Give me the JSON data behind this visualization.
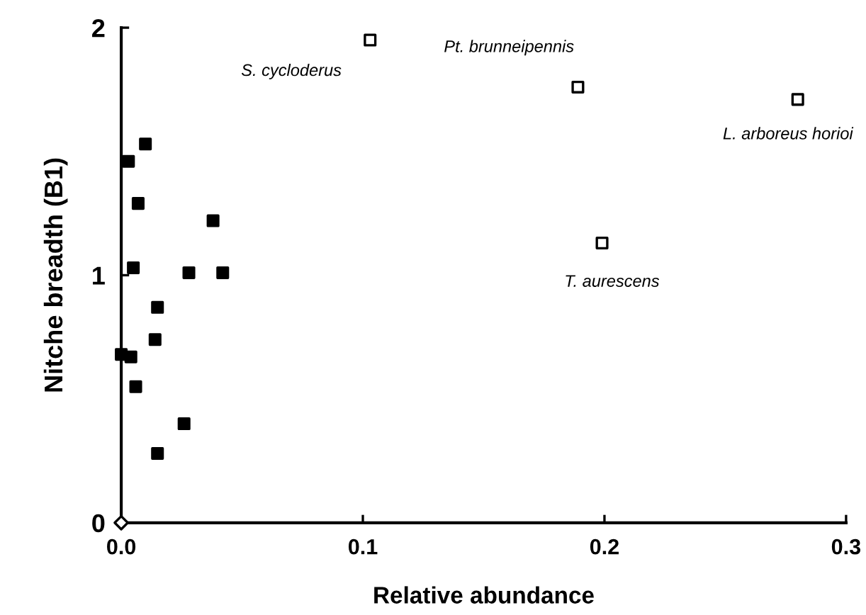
{
  "chart_data": {
    "type": "scatter",
    "xlabel": "Relative abundance",
    "ylabel": "Nitche breadth (B1)",
    "xlim": [
      0,
      0.3
    ],
    "ylim": [
      0,
      2
    ],
    "xticks": [
      {
        "value": 0,
        "label": "0.0"
      },
      0.1,
      0.2,
      0.3
    ],
    "yticks": [
      0,
      1,
      2
    ],
    "grid": false,
    "legend": false,
    "series": [
      {
        "color": "#000000",
        "marker": "square",
        "x": [
          0.01,
          0.003,
          0.007,
          0.038,
          0.005,
          0.028,
          0.042,
          0.015,
          0.014,
          0.0,
          0.004,
          0.006,
          0.026,
          0.015
        ],
        "values": [
          1.53,
          1.46,
          1.29,
          1.22,
          1.03,
          1.01,
          1.01,
          0.87,
          0.74,
          0.68,
          0.67,
          0.55,
          0.4,
          0.28
        ]
      },
      {
        "color": "#000000",
        "marker": "square",
        "x": [
          0.103,
          0.189,
          0.28,
          0.199
        ],
        "values": [
          1.95,
          1.76,
          1.71,
          1.13
        ]
      },
      {
        "color": "#000000",
        "marker": "diamond",
        "x": [
          0.0
        ],
        "values": [
          0.0
        ]
      }
    ],
    "annotations": [
      {
        "text": "S. cycloderus",
        "x": 0.103,
        "y": 1.95
      },
      {
        "text": "Pt. brunneipennis",
        "x": 0.189,
        "y": 1.76
      },
      {
        "text": "L. arboreus horioi",
        "x": 0.28,
        "y": 1.71
      },
      {
        "text": "T. aurescens",
        "x": 0.199,
        "y": 1.13
      }
    ]
  }
}
